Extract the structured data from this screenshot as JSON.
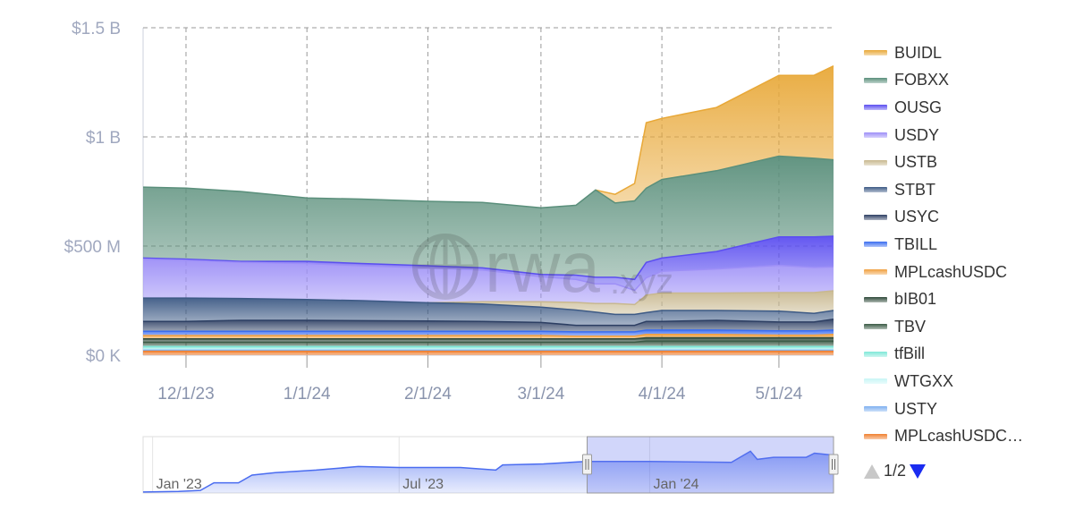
{
  "chart_data": {
    "type": "area",
    "stacked": true,
    "y_axis": {
      "ticks": [
        "$0 K",
        "$500 M",
        "$1 B",
        "$1.5 B"
      ],
      "tick_values": [
        0,
        0.5,
        1.0,
        1.5
      ],
      "unit": "USD billions",
      "ylim": [
        0,
        1.5
      ]
    },
    "x_axis": {
      "ticks": [
        "12/1/23",
        "1/1/24",
        "2/1/24",
        "3/1/24",
        "4/1/24",
        "5/1/24"
      ],
      "tick_dates": [
        "2023-12-01",
        "2024-01-01",
        "2024-02-01",
        "2024-03-01",
        "2024-04-01",
        "2024-05-01"
      ],
      "xlim": [
        "2023-11-20",
        "2024-05-15"
      ]
    },
    "grid": true,
    "legend_placement": "right",
    "x": [
      "2023-11-20",
      "2023-12-01",
      "2023-12-15",
      "2024-01-01",
      "2024-01-15",
      "2024-02-01",
      "2024-02-15",
      "2024-03-01",
      "2024-03-10",
      "2024-03-15",
      "2024-03-20",
      "2024-03-25",
      "2024-03-28",
      "2024-04-01",
      "2024-04-15",
      "2024-05-01",
      "2024-05-10",
      "2024-05-15"
    ],
    "series": [
      {
        "name": "BUIDL",
        "color": "#e8a838",
        "values": [
          0,
          0,
          0,
          0,
          0,
          0,
          0,
          0,
          0,
          0,
          0.04,
          0.08,
          0.3,
          0.28,
          0.29,
          0.37,
          0.38,
          0.43
        ]
      },
      {
        "name": "FOBXX",
        "color": "#5a8f7b",
        "values": [
          0.325,
          0.325,
          0.32,
          0.29,
          0.295,
          0.295,
          0.3,
          0.305,
          0.32,
          0.4,
          0.34,
          0.36,
          0.34,
          0.36,
          0.37,
          0.37,
          0.36,
          0.35
        ]
      },
      {
        "name": "OUSG",
        "color": "#5b4ef0",
        "values": [
          0.005,
          0.005,
          0.005,
          0.01,
          0.01,
          0.01,
          0.01,
          0.01,
          0.02,
          0.03,
          0.03,
          0.05,
          0.07,
          0.06,
          0.08,
          0.13,
          0.14,
          0.14
        ]
      },
      {
        "name": "USDY",
        "color": "#9d8ff7",
        "values": [
          0.178,
          0.173,
          0.165,
          0.165,
          0.16,
          0.16,
          0.145,
          0.115,
          0.105,
          0.09,
          0.09,
          0.065,
          0.08,
          0.1,
          0.11,
          0.125,
          0.115,
          0.11
        ]
      },
      {
        "name": "USTB",
        "color": "#c8b88f",
        "values": [
          0,
          0,
          0,
          0,
          0,
          0,
          0.01,
          0.025,
          0.035,
          0.04,
          0.05,
          0.045,
          0.08,
          0.08,
          0.08,
          0.085,
          0.095,
          0.09
        ]
      },
      {
        "name": "STBT",
        "color": "#3d5a85",
        "values": [
          0.107,
          0.107,
          0.1,
          0.095,
          0.092,
          0.083,
          0.08,
          0.07,
          0.07,
          0.06,
          0.05,
          0.05,
          0.04,
          0.05,
          0.045,
          0.05,
          0.04,
          0.04
        ]
      },
      {
        "name": "USYC",
        "color": "#2d3f63",
        "values": [
          0.045,
          0.045,
          0.05,
          0.05,
          0.048,
          0.047,
          0.045,
          0.04,
          0.03,
          0.03,
          0.03,
          0.03,
          0.04,
          0.04,
          0.045,
          0.04,
          0.04,
          0.05
        ]
      },
      {
        "name": "TBILL",
        "color": "#3a6df0",
        "values": [
          0.02,
          0.02,
          0.02,
          0.02,
          0.02,
          0.02,
          0.02,
          0.02,
          0.02,
          0.02,
          0.02,
          0.02,
          0.02,
          0.02,
          0.02,
          0.02,
          0.02,
          0.02
        ]
      },
      {
        "name": "MPLcashUSDC",
        "color": "#f0a040",
        "values": [
          0.015,
          0.015,
          0.015,
          0.015,
          0.015,
          0.015,
          0.015,
          0.015,
          0.012,
          0.012,
          0.012,
          0.012,
          0.015,
          0.015,
          0.015,
          0.012,
          0.012,
          0.015
        ]
      },
      {
        "name": "bIB01",
        "color": "#2f4a3a",
        "values": [
          0.015,
          0.015,
          0.015,
          0.015,
          0.015,
          0.015,
          0.015,
          0.015,
          0.015,
          0.015,
          0.015,
          0.015,
          0.015,
          0.015,
          0.015,
          0.015,
          0.015,
          0.015
        ]
      },
      {
        "name": "TBV",
        "color": "#3a5a45",
        "values": [
          0.02,
          0.02,
          0.02,
          0.02,
          0.02,
          0.02,
          0.02,
          0.02,
          0.02,
          0.02,
          0.02,
          0.02,
          0.025,
          0.025,
          0.025,
          0.025,
          0.025,
          0.025
        ]
      },
      {
        "name": "tfBill",
        "color": "#7fe8d8",
        "values": [
          0.012,
          0.012,
          0.012,
          0.012,
          0.012,
          0.012,
          0.012,
          0.012,
          0.012,
          0.012,
          0.012,
          0.012,
          0.012,
          0.012,
          0.012,
          0.012,
          0.012,
          0.012
        ]
      },
      {
        "name": "WTGXX",
        "color": "#c8f5f5",
        "values": [
          0.005,
          0.005,
          0.005,
          0.005,
          0.005,
          0.005,
          0.005,
          0.005,
          0.005,
          0.005,
          0.005,
          0.005,
          0.005,
          0.005,
          0.005,
          0.005,
          0.005,
          0.005
        ]
      },
      {
        "name": "USTY",
        "color": "#7fb0f0",
        "values": [
          0.005,
          0.005,
          0.005,
          0.005,
          0.005,
          0.005,
          0.005,
          0.005,
          0.005,
          0.005,
          0.005,
          0.005,
          0.005,
          0.005,
          0.005,
          0.005,
          0.005,
          0.005
        ]
      },
      {
        "name": "MPLcashUSDC…",
        "color": "#f08030",
        "values": [
          0.018,
          0.018,
          0.018,
          0.018,
          0.018,
          0.018,
          0.018,
          0.018,
          0.018,
          0.018,
          0.018,
          0.018,
          0.018,
          0.018,
          0.018,
          0.018,
          0.018,
          0.018
        ]
      }
    ],
    "navigator": {
      "ticks": [
        "Jan '23",
        "Jul '23",
        "Jan '24"
      ],
      "tick_dates": [
        "2023-01-01",
        "2023-07-01",
        "2024-01-01"
      ],
      "xlim": [
        "2022-12-25",
        "2024-05-15"
      ],
      "selected_range": [
        "2023-11-20",
        "2024-05-15"
      ],
      "color": "#4a6cf0",
      "x": [
        "2022-12-25",
        "2023-01-20",
        "2023-02-05",
        "2023-02-15",
        "2023-03-05",
        "2023-03-15",
        "2023-04-01",
        "2023-05-01",
        "2023-06-01",
        "2023-07-01",
        "2023-08-15",
        "2023-09-10",
        "2023-09-15",
        "2023-10-15",
        "2023-11-15",
        "2024-01-01",
        "2024-03-01",
        "2024-03-15",
        "2024-03-20",
        "2024-04-01",
        "2024-04-25",
        "2024-05-01",
        "2024-05-15"
      ],
      "values": [
        0.02,
        0.03,
        0.05,
        0.2,
        0.2,
        0.35,
        0.4,
        0.45,
        0.52,
        0.5,
        0.5,
        0.45,
        0.55,
        0.57,
        0.62,
        0.62,
        0.6,
        0.82,
        0.66,
        0.7,
        0.7,
        0.78,
        0.74
      ]
    }
  },
  "legend": {
    "page": "1/2"
  },
  "watermark": {
    "text": "rwa",
    "suffix": ".xyz"
  }
}
